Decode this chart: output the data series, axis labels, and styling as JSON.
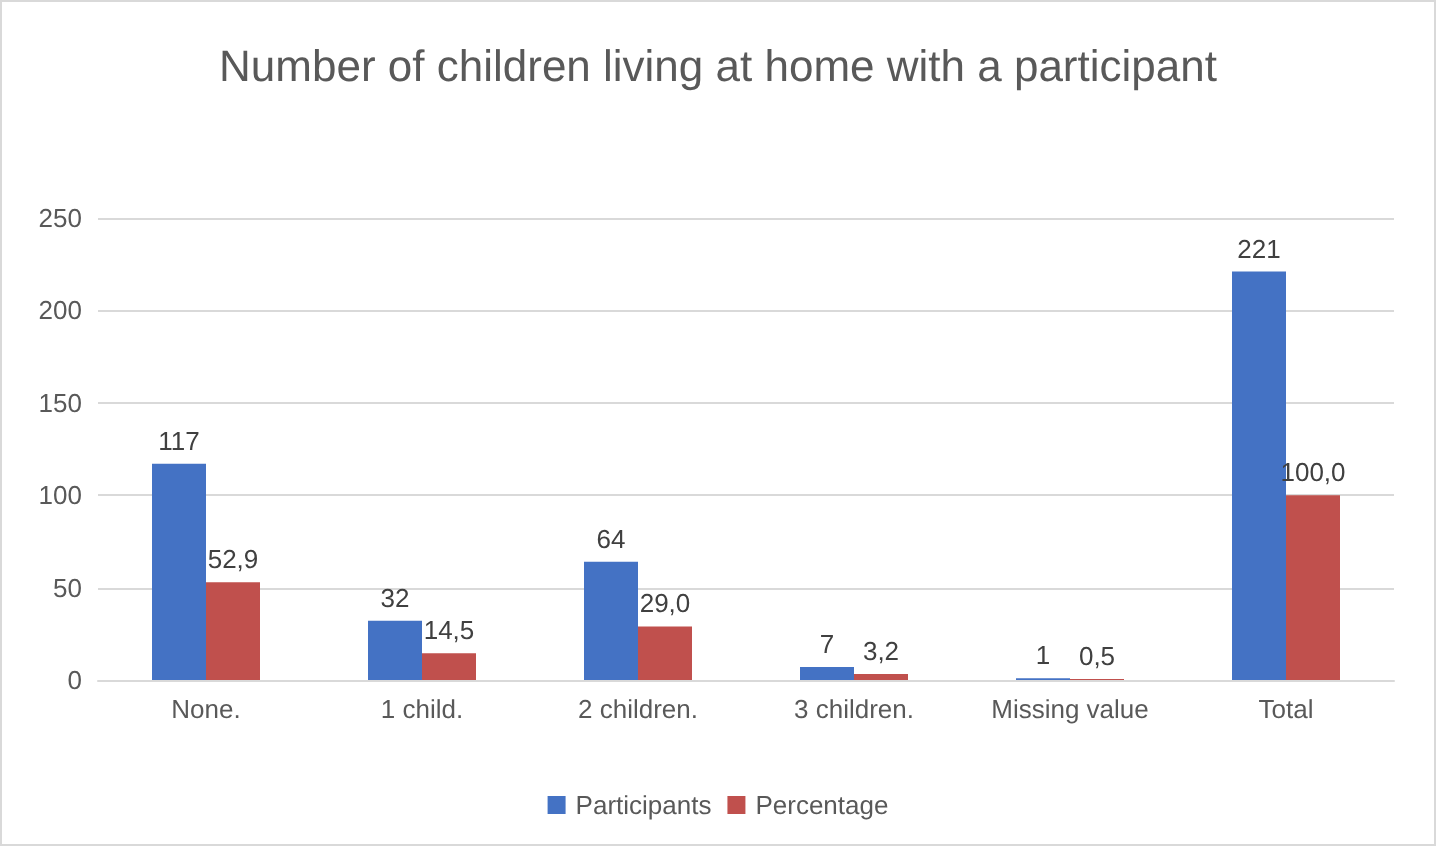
{
  "chart_data": {
    "type": "bar",
    "title": "Number of children living at home with a participant",
    "categories": [
      "None.",
      "1 child.",
      "2 children.",
      "3 children.",
      "Missing value",
      "Total"
    ],
    "series": [
      {
        "name": "Participants",
        "color": "#4472c4",
        "values": [
          117,
          32,
          64,
          7,
          1,
          221
        ],
        "value_labels": [
          "117",
          "32",
          "64",
          "7",
          "1",
          "221"
        ]
      },
      {
        "name": "Percentage",
        "color": "#c0504d",
        "values": [
          52.9,
          14.5,
          29.0,
          3.2,
          0.5,
          100.0
        ],
        "value_labels": [
          "52,9",
          "14,5",
          "29,0",
          "3,2",
          "0,5",
          "100,0"
        ]
      }
    ],
    "ylim": [
      0,
      250
    ],
    "yticks": [
      0,
      50,
      100,
      150,
      200,
      250
    ],
    "grid": "y",
    "legend": "bottom"
  }
}
